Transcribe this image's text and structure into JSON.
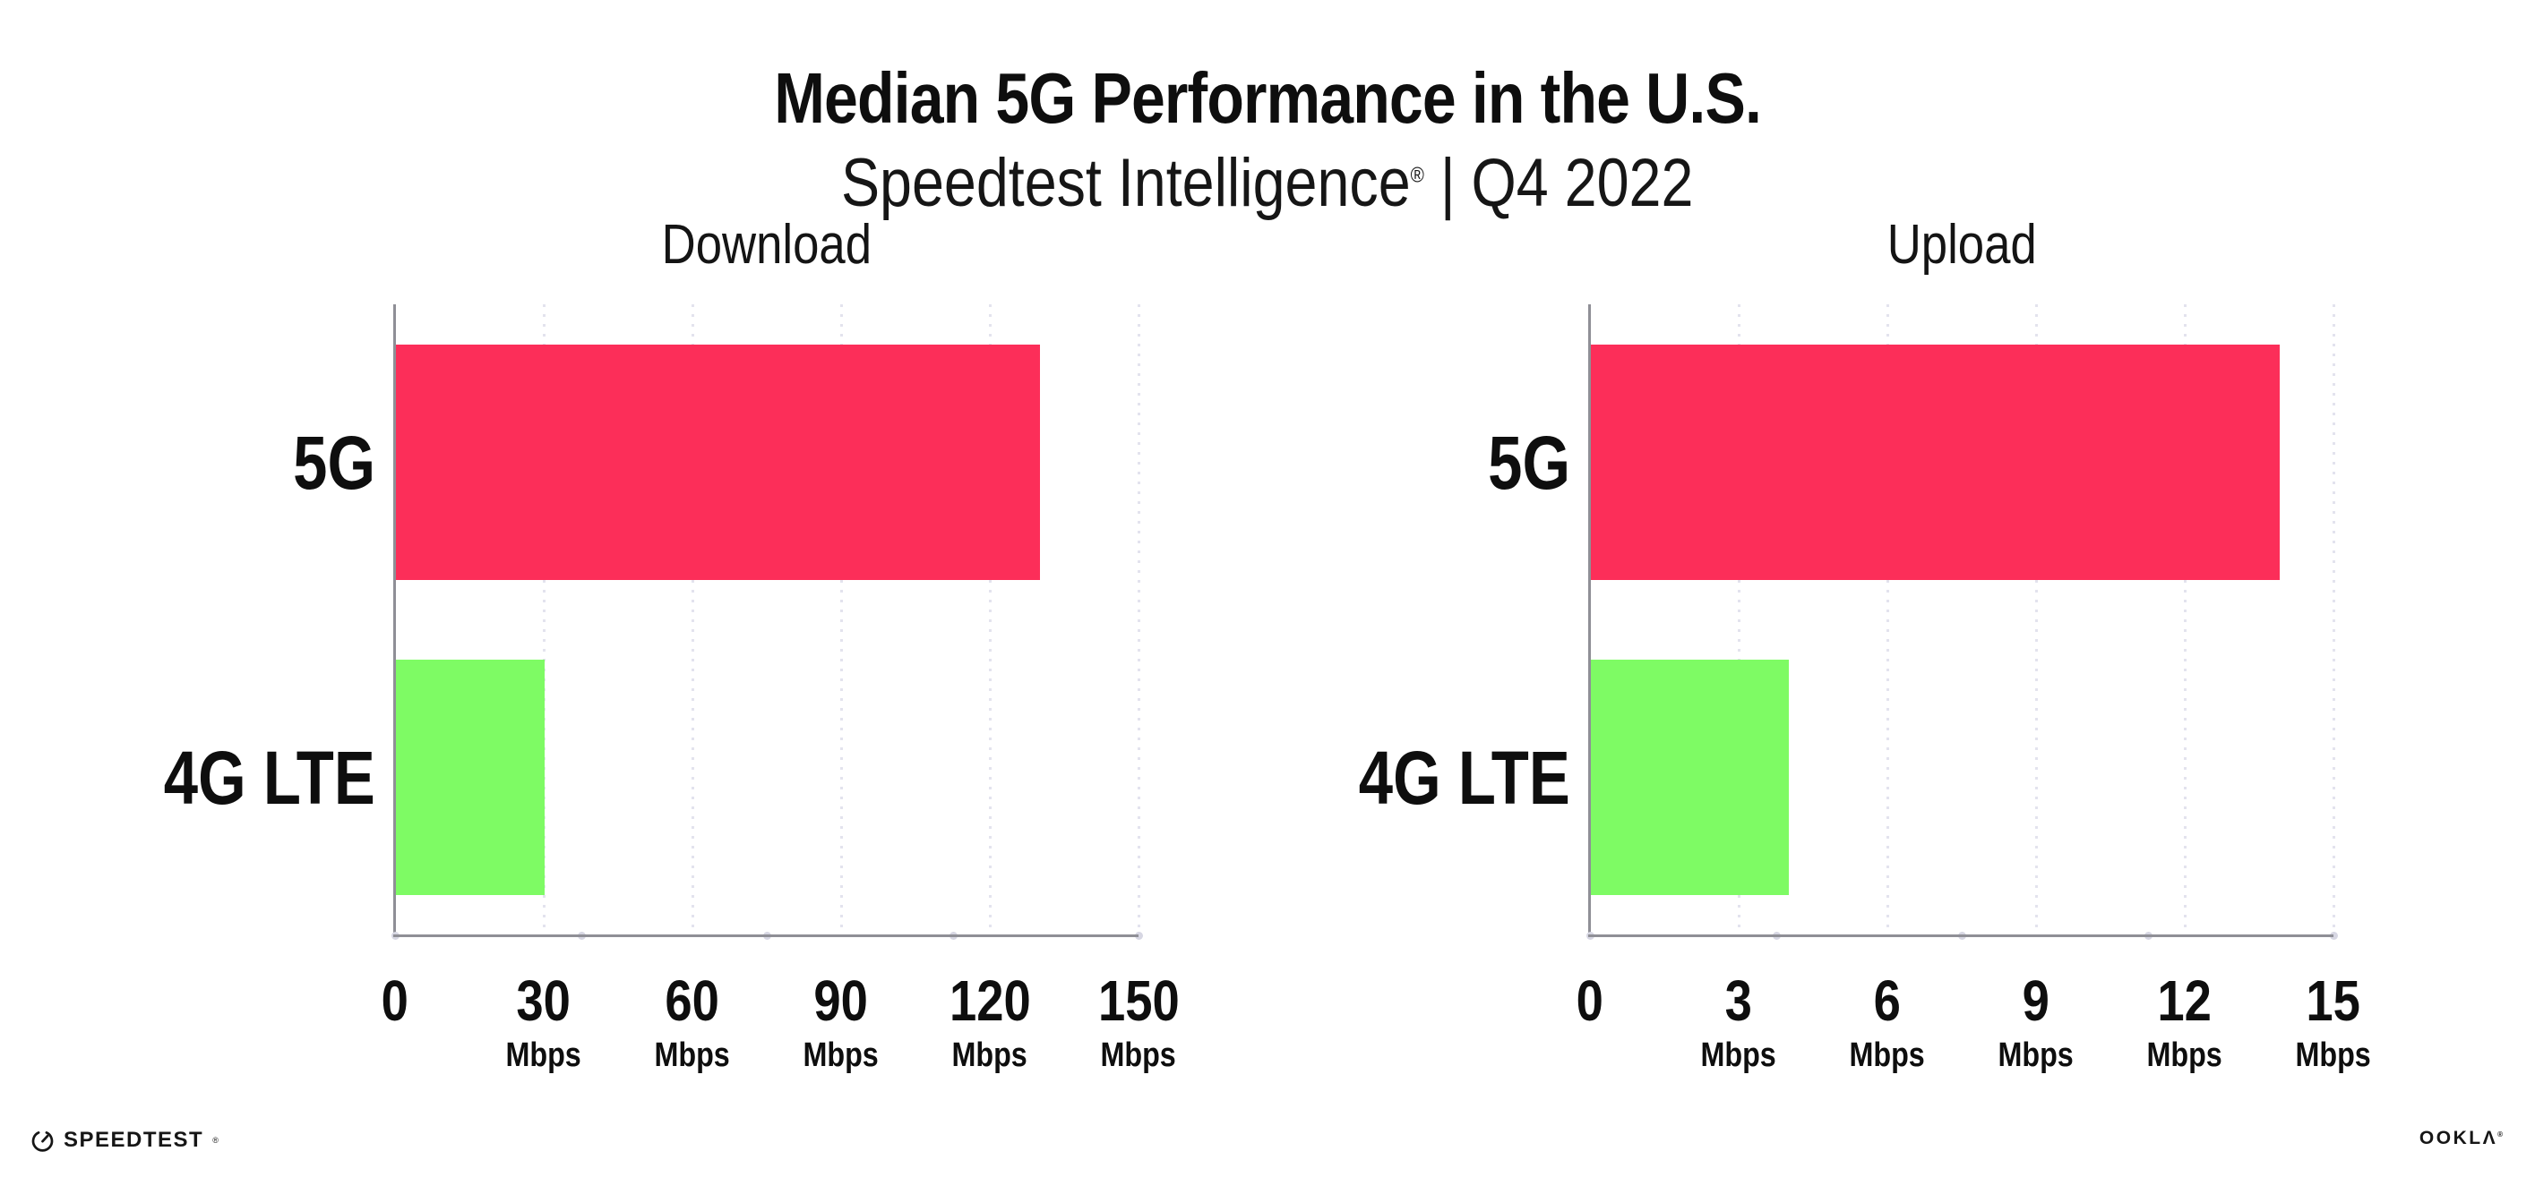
{
  "header": {
    "title": "Median 5G Performance in the U.S.",
    "subtitle_brand": "Speedtest Intelligence",
    "subtitle_reg": "®",
    "subtitle_rest": " | Q4 2022"
  },
  "chart_data": [
    {
      "type": "bar",
      "orientation": "horizontal",
      "title": "Download",
      "categories": [
        "5G",
        "4G LTE"
      ],
      "values": [
        130,
        30
      ],
      "unit": "Mbps",
      "xlabel": "",
      "ylabel": "",
      "xlim": [
        0,
        150
      ],
      "xticks": [
        0,
        30,
        60,
        90,
        120,
        150
      ],
      "grid": "vertical-dotted",
      "legend": "none",
      "bar_colors": [
        "#fc2e59",
        "#7efb64"
      ]
    },
    {
      "type": "bar",
      "orientation": "horizontal",
      "title": "Upload",
      "categories": [
        "5G",
        "4G LTE"
      ],
      "values": [
        13.9,
        4
      ],
      "unit": "Mbps",
      "xlabel": "",
      "ylabel": "",
      "xlim": [
        0,
        15
      ],
      "xticks": [
        0,
        3,
        6,
        9,
        12,
        15
      ],
      "grid": "vertical-dotted",
      "legend": "none",
      "bar_colors": [
        "#fc2e59",
        "#7efb64"
      ]
    }
  ],
  "colors": {
    "background": "#ffffff",
    "bar_5g": "#fc2e59",
    "bar_4g_lte": "#7efb64",
    "axis_line": "#8f8f96",
    "gridline": "#e3e3ee",
    "text": "#0e0e0e"
  },
  "footer": {
    "speedtest_label": "SPEEDTEST",
    "speedtest_reg": "®",
    "ookla_label": "OOKLΛ",
    "ookla_reg": "®"
  }
}
